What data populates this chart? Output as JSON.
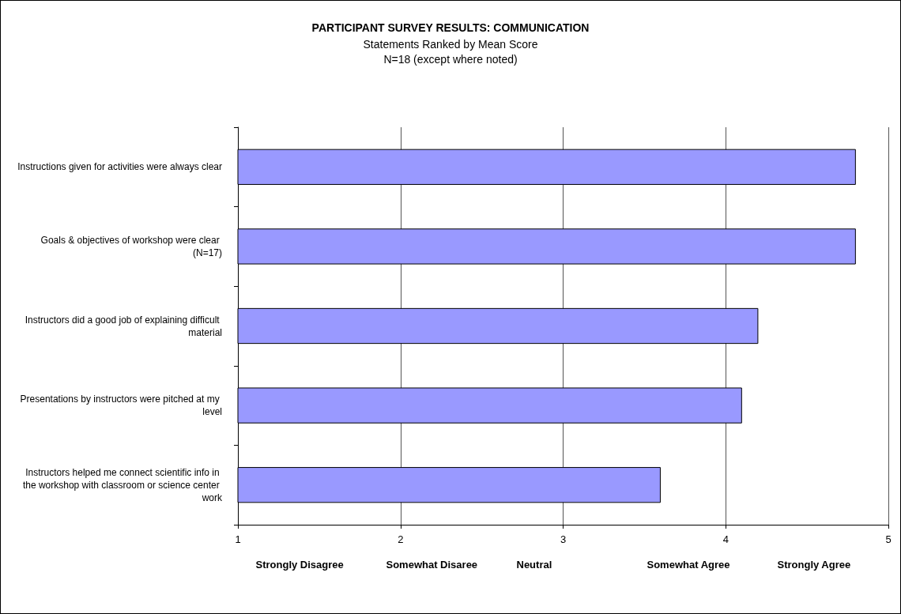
{
  "chart_data": {
    "type": "bar",
    "orientation": "horizontal",
    "title": "PARTICIPANT SURVEY RESULTS: COMMUNICATION",
    "subtitle": "Statements Ranked by Mean Score\nN=18 (except where noted)",
    "categories": [
      "Instructions given for activities were always clear",
      "Goals & objectives of workshop were clear (N=17)",
      "Instructors did a good job of explaining difficult material",
      "Presentations by instructors were pitched at my level",
      "Instructors helped me connect scientific info in the workshop with classroom or science center work"
    ],
    "values": [
      4.8,
      4.8,
      4.2,
      4.1,
      3.6
    ],
    "color": "#9999ff",
    "xlim": [
      1,
      5
    ],
    "xticks": [
      1,
      2,
      3,
      4,
      5
    ],
    "grid": "x",
    "annotations": [
      "Strongly Disagree",
      "Somewhat Disaree",
      "Neutral",
      "Somewhat Agree",
      "Strongly Agree"
    ]
  }
}
